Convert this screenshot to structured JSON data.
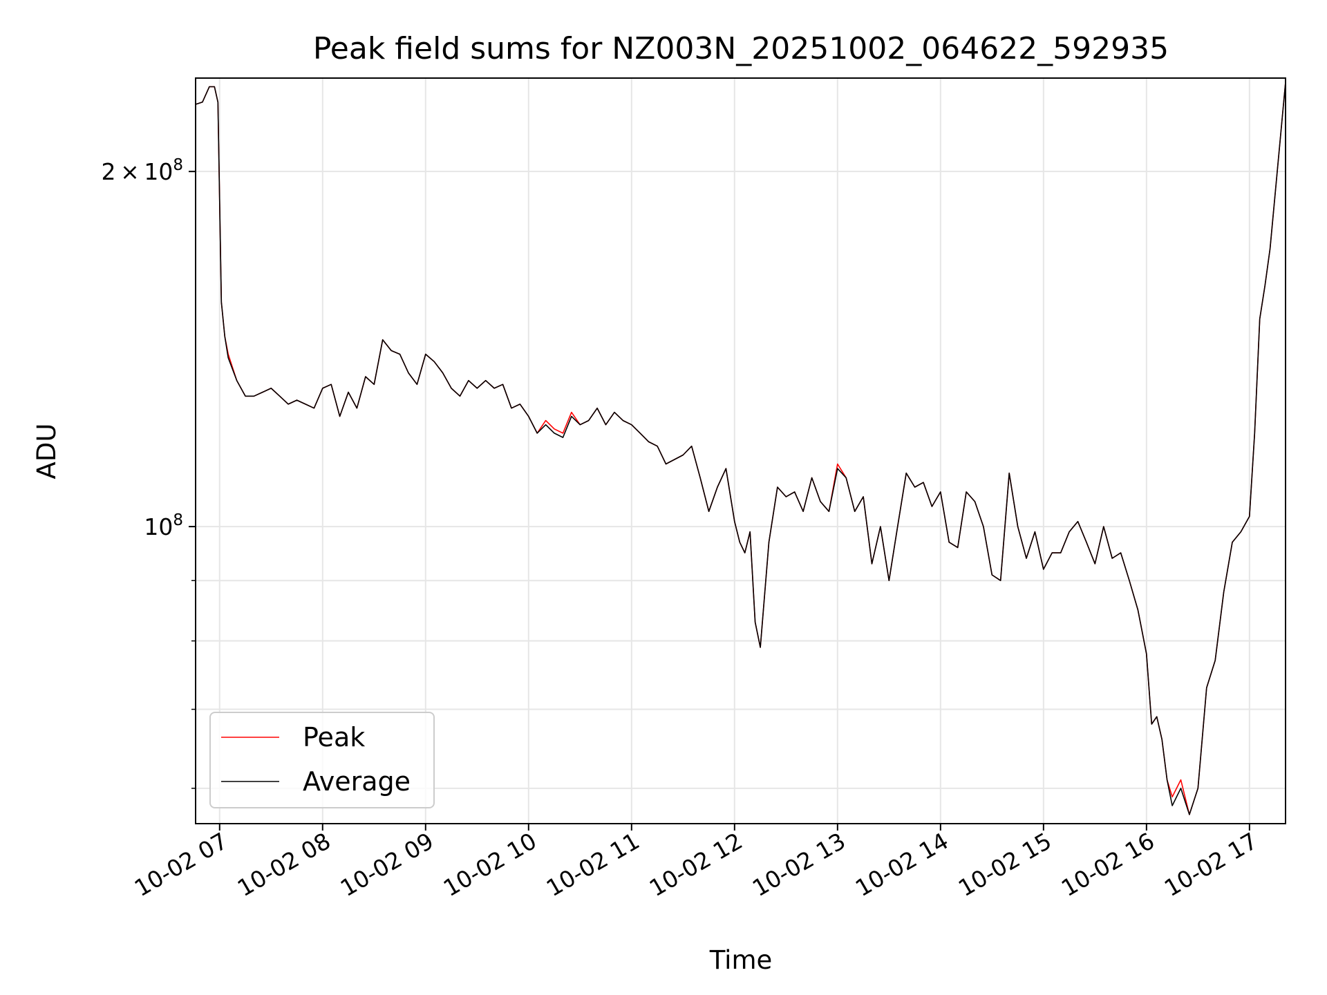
{
  "chart_data": {
    "type": "line",
    "title": "Peak field sums for NZ003N_20251002_064622_592935",
    "xlabel": "Time",
    "ylabel": "ADU",
    "y_scale": "log",
    "ylim": [
      56000000,
      240000000
    ],
    "xlim": [
      "2025-10-02 06:46",
      "2025-10-02 17:21"
    ],
    "x_ticks": [
      "2025-10-02 07:00",
      "2025-10-02 08:00",
      "2025-10-02 09:00",
      "2025-10-02 10:00",
      "2025-10-02 11:00",
      "2025-10-02 12:00",
      "2025-10-02 13:00",
      "2025-10-02 14:00",
      "2025-10-02 15:00",
      "2025-10-02 16:00",
      "2025-10-02 17:00"
    ],
    "x_tick_labels": [
      "10-02 07",
      "10-02 08",
      "10-02 09",
      "10-02 10",
      "10-02 11",
      "10-02 12",
      "10-02 13",
      "10-02 14",
      "10-02 15",
      "10-02 16",
      "10-02 17"
    ],
    "y_tick_labels": [
      {
        "value": 100000000,
        "mantissa": "",
        "base": "10",
        "exp": "8"
      },
      {
        "value": 200000000,
        "mantissa": "2 × ",
        "base": "10",
        "exp": "8"
      }
    ],
    "y_minor_ticks": [
      60000000,
      70000000,
      80000000,
      90000000
    ],
    "grid": true,
    "legend": "lower-left",
    "series": [
      {
        "name": "Peak",
        "color": "#ff0000",
        "x": [
          "2025-10-02 06:46",
          "2025-10-02 06:50",
          "2025-10-02 06:54",
          "2025-10-02 06:57",
          "2025-10-02 06:59",
          "2025-10-02 07:01",
          "2025-10-02 07:03",
          "2025-10-02 07:05",
          "2025-10-02 07:10",
          "2025-10-02 07:15",
          "2025-10-02 07:20",
          "2025-10-02 07:25",
          "2025-10-02 07:30",
          "2025-10-02 07:35",
          "2025-10-02 07:40",
          "2025-10-02 07:45",
          "2025-10-02 07:50",
          "2025-10-02 07:55",
          "2025-10-02 08:00",
          "2025-10-02 08:05",
          "2025-10-02 08:10",
          "2025-10-02 08:15",
          "2025-10-02 08:20",
          "2025-10-02 08:25",
          "2025-10-02 08:30",
          "2025-10-02 08:35",
          "2025-10-02 08:40",
          "2025-10-02 08:45",
          "2025-10-02 08:50",
          "2025-10-02 08:55",
          "2025-10-02 09:00",
          "2025-10-02 09:05",
          "2025-10-02 09:10",
          "2025-10-02 09:15",
          "2025-10-02 09:20",
          "2025-10-02 09:25",
          "2025-10-02 09:30",
          "2025-10-02 09:35",
          "2025-10-02 09:40",
          "2025-10-02 09:45",
          "2025-10-02 09:50",
          "2025-10-02 09:55",
          "2025-10-02 10:00",
          "2025-10-02 10:05",
          "2025-10-02 10:10",
          "2025-10-02 10:15",
          "2025-10-02 10:20",
          "2025-10-02 10:25",
          "2025-10-02 10:30",
          "2025-10-02 10:35",
          "2025-10-02 10:40",
          "2025-10-02 10:45",
          "2025-10-02 10:50",
          "2025-10-02 10:55",
          "2025-10-02 11:00",
          "2025-10-02 11:05",
          "2025-10-02 11:10",
          "2025-10-02 11:15",
          "2025-10-02 11:20",
          "2025-10-02 11:25",
          "2025-10-02 11:30",
          "2025-10-02 11:35",
          "2025-10-02 11:40",
          "2025-10-02 11:45",
          "2025-10-02 11:50",
          "2025-10-02 11:55",
          "2025-10-02 12:00",
          "2025-10-02 12:03",
          "2025-10-02 12:06",
          "2025-10-02 12:09",
          "2025-10-02 12:12",
          "2025-10-02 12:15",
          "2025-10-02 12:20",
          "2025-10-02 12:25",
          "2025-10-02 12:30",
          "2025-10-02 12:35",
          "2025-10-02 12:40",
          "2025-10-02 12:45",
          "2025-10-02 12:50",
          "2025-10-02 12:55",
          "2025-10-02 13:00",
          "2025-10-02 13:05",
          "2025-10-02 13:10",
          "2025-10-02 13:15",
          "2025-10-02 13:20",
          "2025-10-02 13:25",
          "2025-10-02 13:30",
          "2025-10-02 13:35",
          "2025-10-02 13:40",
          "2025-10-02 13:45",
          "2025-10-02 13:50",
          "2025-10-02 13:55",
          "2025-10-02 14:00",
          "2025-10-02 14:05",
          "2025-10-02 14:10",
          "2025-10-02 14:15",
          "2025-10-02 14:20",
          "2025-10-02 14:25",
          "2025-10-02 14:30",
          "2025-10-02 14:35",
          "2025-10-02 14:40",
          "2025-10-02 14:45",
          "2025-10-02 14:50",
          "2025-10-02 14:55",
          "2025-10-02 15:00",
          "2025-10-02 15:05",
          "2025-10-02 15:10",
          "2025-10-02 15:15",
          "2025-10-02 15:20",
          "2025-10-02 15:25",
          "2025-10-02 15:30",
          "2025-10-02 15:35",
          "2025-10-02 15:40",
          "2025-10-02 15:45",
          "2025-10-02 15:50",
          "2025-10-02 15:55",
          "2025-10-02 16:00",
          "2025-10-02 16:03",
          "2025-10-02 16:06",
          "2025-10-02 16:09",
          "2025-10-02 16:12",
          "2025-10-02 16:15",
          "2025-10-02 16:20",
          "2025-10-02 16:25",
          "2025-10-02 16:30",
          "2025-10-02 16:35",
          "2025-10-02 16:40",
          "2025-10-02 16:45",
          "2025-10-02 16:50",
          "2025-10-02 16:55",
          "2025-10-02 17:00",
          "2025-10-02 17:03",
          "2025-10-02 17:06",
          "2025-10-02 17:09",
          "2025-10-02 17:12",
          "2025-10-02 17:21"
        ],
        "values": [
          228000000,
          229000000,
          236000000,
          236000000,
          229000000,
          155000000,
          145000000,
          140000000,
          133000000,
          129000000,
          129000000,
          130000000,
          131000000,
          129000000,
          127000000,
          128000000,
          127000000,
          126000000,
          131000000,
          132000000,
          124000000,
          130000000,
          126000000,
          134000000,
          132000000,
          144000000,
          141000000,
          140000000,
          135000000,
          132000000,
          140000000,
          138000000,
          135000000,
          131000000,
          129000000,
          133000000,
          131000000,
          133000000,
          131000000,
          132000000,
          126000000,
          127000000,
          124000000,
          120000000,
          123000000,
          121000000,
          120000000,
          125000000,
          122000000,
          123000000,
          126000000,
          122000000,
          125000000,
          123000000,
          122000000,
          120000000,
          118000000,
          117000000,
          113000000,
          114000000,
          115000000,
          117000000,
          110000000,
          103000000,
          108000000,
          112000000,
          101000000,
          97000000,
          95000000,
          99000000,
          83000000,
          79000000,
          97000000,
          108000000,
          106000000,
          107000000,
          103000000,
          110000000,
          105000000,
          103000000,
          113000000,
          110000000,
          103000000,
          106000000,
          93000000,
          100000000,
          90000000,
          100000000,
          111000000,
          108000000,
          109000000,
          104000000,
          107000000,
          97000000,
          96000000,
          107000000,
          105000000,
          100000000,
          91000000,
          90000000,
          111000000,
          100000000,
          94000000,
          99000000,
          92000000,
          95000000,
          95000000,
          99000000,
          101000000,
          97000000,
          93000000,
          100000000,
          94000000,
          95000000,
          90000000,
          85000000,
          78000000,
          68000000,
          69000000,
          66000000,
          61000000,
          59000000,
          61000000,
          57000000,
          60000000,
          73000000,
          77000000,
          88000000,
          97000000,
          99000000,
          102000000,
          120000000,
          150000000,
          160000000,
          172000000,
          238000000
        ]
      },
      {
        "name": "Average",
        "color": "#000000",
        "x": [
          "2025-10-02 06:46",
          "2025-10-02 06:50",
          "2025-10-02 06:54",
          "2025-10-02 06:57",
          "2025-10-02 06:59",
          "2025-10-02 07:01",
          "2025-10-02 07:03",
          "2025-10-02 07:05",
          "2025-10-02 07:10",
          "2025-10-02 07:15",
          "2025-10-02 07:20",
          "2025-10-02 07:25",
          "2025-10-02 07:30",
          "2025-10-02 07:35",
          "2025-10-02 07:40",
          "2025-10-02 07:45",
          "2025-10-02 07:50",
          "2025-10-02 07:55",
          "2025-10-02 08:00",
          "2025-10-02 08:05",
          "2025-10-02 08:10",
          "2025-10-02 08:15",
          "2025-10-02 08:20",
          "2025-10-02 08:25",
          "2025-10-02 08:30",
          "2025-10-02 08:35",
          "2025-10-02 08:40",
          "2025-10-02 08:45",
          "2025-10-02 08:50",
          "2025-10-02 08:55",
          "2025-10-02 09:00",
          "2025-10-02 09:05",
          "2025-10-02 09:10",
          "2025-10-02 09:15",
          "2025-10-02 09:20",
          "2025-10-02 09:25",
          "2025-10-02 09:30",
          "2025-10-02 09:35",
          "2025-10-02 09:40",
          "2025-10-02 09:45",
          "2025-10-02 09:50",
          "2025-10-02 09:55",
          "2025-10-02 10:00",
          "2025-10-02 10:05",
          "2025-10-02 10:10",
          "2025-10-02 10:15",
          "2025-10-02 10:20",
          "2025-10-02 10:25",
          "2025-10-02 10:30",
          "2025-10-02 10:35",
          "2025-10-02 10:40",
          "2025-10-02 10:45",
          "2025-10-02 10:50",
          "2025-10-02 10:55",
          "2025-10-02 11:00",
          "2025-10-02 11:05",
          "2025-10-02 11:10",
          "2025-10-02 11:15",
          "2025-10-02 11:20",
          "2025-10-02 11:25",
          "2025-10-02 11:30",
          "2025-10-02 11:35",
          "2025-10-02 11:40",
          "2025-10-02 11:45",
          "2025-10-02 11:50",
          "2025-10-02 11:55",
          "2025-10-02 12:00",
          "2025-10-02 12:03",
          "2025-10-02 12:06",
          "2025-10-02 12:09",
          "2025-10-02 12:12",
          "2025-10-02 12:15",
          "2025-10-02 12:20",
          "2025-10-02 12:25",
          "2025-10-02 12:30",
          "2025-10-02 12:35",
          "2025-10-02 12:40",
          "2025-10-02 12:45",
          "2025-10-02 12:50",
          "2025-10-02 12:55",
          "2025-10-02 13:00",
          "2025-10-02 13:05",
          "2025-10-02 13:10",
          "2025-10-02 13:15",
          "2025-10-02 13:20",
          "2025-10-02 13:25",
          "2025-10-02 13:30",
          "2025-10-02 13:35",
          "2025-10-02 13:40",
          "2025-10-02 13:45",
          "2025-10-02 13:50",
          "2025-10-02 13:55",
          "2025-10-02 14:00",
          "2025-10-02 14:05",
          "2025-10-02 14:10",
          "2025-10-02 14:15",
          "2025-10-02 14:20",
          "2025-10-02 14:25",
          "2025-10-02 14:30",
          "2025-10-02 14:35",
          "2025-10-02 14:40",
          "2025-10-02 14:45",
          "2025-10-02 14:50",
          "2025-10-02 14:55",
          "2025-10-02 15:00",
          "2025-10-02 15:05",
          "2025-10-02 15:10",
          "2025-10-02 15:15",
          "2025-10-02 15:20",
          "2025-10-02 15:25",
          "2025-10-02 15:30",
          "2025-10-02 15:35",
          "2025-10-02 15:40",
          "2025-10-02 15:45",
          "2025-10-02 15:50",
          "2025-10-02 15:55",
          "2025-10-02 16:00",
          "2025-10-02 16:03",
          "2025-10-02 16:06",
          "2025-10-02 16:09",
          "2025-10-02 16:12",
          "2025-10-02 16:15",
          "2025-10-02 16:20",
          "2025-10-02 16:25",
          "2025-10-02 16:30",
          "2025-10-02 16:35",
          "2025-10-02 16:40",
          "2025-10-02 16:45",
          "2025-10-02 16:50",
          "2025-10-02 16:55",
          "2025-10-02 17:00",
          "2025-10-02 17:03",
          "2025-10-02 17:06",
          "2025-10-02 17:09",
          "2025-10-02 17:12",
          "2025-10-02 17:21"
        ],
        "values": [
          228000000,
          229000000,
          236000000,
          236000000,
          229000000,
          155000000,
          145000000,
          139000000,
          133000000,
          129000000,
          129000000,
          130000000,
          131000000,
          129000000,
          127000000,
          128000000,
          127000000,
          126000000,
          131000000,
          132000000,
          124000000,
          130000000,
          126000000,
          134000000,
          132000000,
          144000000,
          141000000,
          140000000,
          135000000,
          132000000,
          140000000,
          138000000,
          135000000,
          131000000,
          129000000,
          133000000,
          131000000,
          133000000,
          131000000,
          132000000,
          126000000,
          127000000,
          124000000,
          120000000,
          122000000,
          120000000,
          119000000,
          124000000,
          122000000,
          123000000,
          126000000,
          122000000,
          125000000,
          123000000,
          122000000,
          120000000,
          118000000,
          117000000,
          113000000,
          114000000,
          115000000,
          117000000,
          110000000,
          103000000,
          108000000,
          112000000,
          101000000,
          97000000,
          95000000,
          99000000,
          83000000,
          79000000,
          97000000,
          108000000,
          106000000,
          107000000,
          103000000,
          110000000,
          105000000,
          103000000,
          112000000,
          110000000,
          103000000,
          106000000,
          93000000,
          100000000,
          90000000,
          100000000,
          111000000,
          108000000,
          109000000,
          104000000,
          107000000,
          97000000,
          96000000,
          107000000,
          105000000,
          100000000,
          91000000,
          90000000,
          111000000,
          100000000,
          94000000,
          99000000,
          92000000,
          95000000,
          95000000,
          99000000,
          101000000,
          97000000,
          93000000,
          100000000,
          94000000,
          95000000,
          90000000,
          85000000,
          78000000,
          68000000,
          69000000,
          66000000,
          61000000,
          58000000,
          60000000,
          57000000,
          60000000,
          73000000,
          77000000,
          88000000,
          97000000,
          99000000,
          102000000,
          120000000,
          150000000,
          160000000,
          172000000,
          238000000
        ]
      }
    ]
  }
}
